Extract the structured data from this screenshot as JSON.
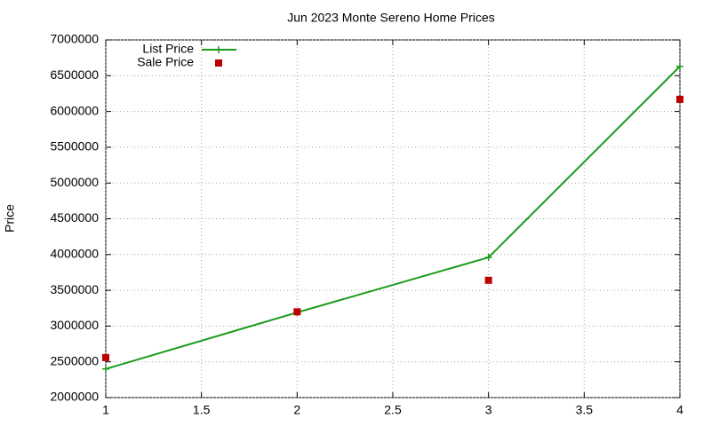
{
  "chart_data": {
    "type": "line",
    "title": "Jun 2023 Monte Sereno Home Prices",
    "ylabel": "Price",
    "x": [
      1,
      2,
      3,
      4
    ],
    "series": [
      {
        "name": "List Price",
        "color": "#1a9a1a",
        "marker": "plus",
        "values": [
          2400000,
          3190000,
          3960000,
          6630000
        ]
      },
      {
        "name": "Sale Price",
        "color": "#c00000",
        "marker": "square",
        "line": false,
        "values": [
          2560000,
          3200000,
          3640000,
          6170000
        ]
      }
    ],
    "xlim": [
      1,
      4
    ],
    "xticks": [
      1,
      1.5,
      2,
      2.5,
      3,
      3.5,
      4
    ],
    "ylim": [
      2000000,
      7000000
    ],
    "yticks": [
      2000000,
      2500000,
      3000000,
      3500000,
      4000000,
      4500000,
      5000000,
      5500000,
      6000000,
      6500000,
      7000000
    ],
    "grid": true,
    "legend": "top-left"
  }
}
